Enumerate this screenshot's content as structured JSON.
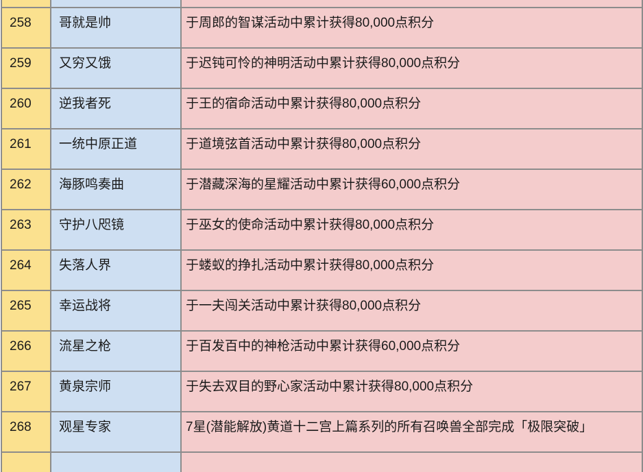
{
  "table": {
    "rows": [
      {
        "id": "258",
        "title": "哥就是帅",
        "description": "于周郎的智谋活动中累计获得80,000点积分"
      },
      {
        "id": "259",
        "title": "又穷又饿",
        "description": "于迟钝可怜的神明活动中累计获得80,000点积分"
      },
      {
        "id": "260",
        "title": "逆我者死",
        "description": "于王的宿命活动中累计获得80,000点积分"
      },
      {
        "id": "261",
        "title": "一统中原正道",
        "description": "于道境弦首活动中累计获得80,000点积分"
      },
      {
        "id": "262",
        "title": "海豚鸣奏曲",
        "description": "于潜藏深海的星耀活动中累计获得60,000点积分"
      },
      {
        "id": "263",
        "title": "守护八咫镜",
        "description": "于巫女的使命活动中累计获得80,000点积分"
      },
      {
        "id": "264",
        "title": "失落人界",
        "description": "于蝼蚁的挣扎活动中累计获得80,000点积分"
      },
      {
        "id": "265",
        "title": "幸运战将",
        "description": "于一夫闯关活动中累计获得80,000点积分"
      },
      {
        "id": "266",
        "title": "流星之枪",
        "description": "于百发百中的神枪活动中累计获得60,000点积分"
      },
      {
        "id": "267",
        "title": "黄泉宗师",
        "description": "于失去双目的野心家活动中累计获得80,000点积分"
      },
      {
        "id": "268",
        "title": "观星专家",
        "description": "7星(潜能解放)黄道十二宫上篇系列的所有召唤兽全部完成「极限突破」"
      }
    ]
  },
  "colors": {
    "number_col_bg": "#fbe18f",
    "title_col_bg": "#cedff2",
    "description_col_bg": "#f4cccc",
    "border": "#8c8c8c",
    "text": "#1b1b1b"
  }
}
